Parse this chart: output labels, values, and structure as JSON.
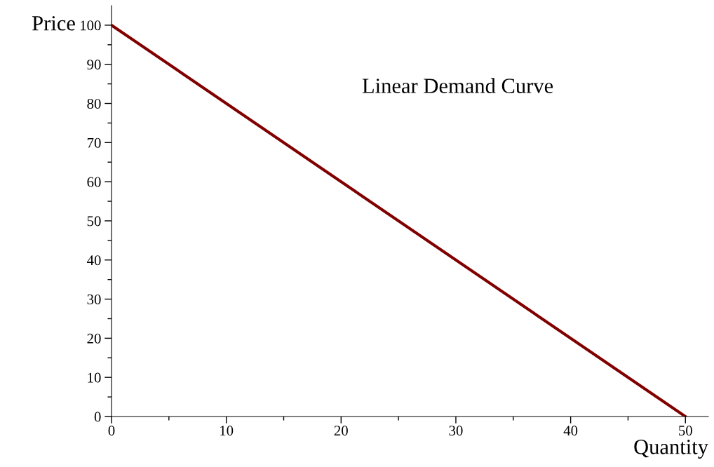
{
  "chart_data": {
    "type": "line",
    "title": "Linear Demand Curve",
    "xlabel": "Quantity",
    "ylabel": "Price",
    "x": [
      0,
      50
    ],
    "series": [
      {
        "color": "#800000",
        "values": [
          100,
          0
        ]
      }
    ],
    "xlim": [
      0,
      52
    ],
    "ylim": [
      0,
      105
    ],
    "xticks": [
      0,
      {
        "value": 5,
        "label": null
      },
      10,
      {
        "value": 15,
        "label": null
      },
      20,
      {
        "value": 25,
        "label": null
      },
      30,
      {
        "value": 35,
        "label": null
      },
      40,
      {
        "value": 45,
        "label": null
      },
      50
    ],
    "yticks": [
      0,
      {
        "value": 5,
        "label": null
      },
      10,
      {
        "value": 15,
        "label": null
      },
      20,
      {
        "value": 25,
        "label": null
      },
      30,
      {
        "value": 35,
        "label": null
      },
      40,
      {
        "value": 45,
        "label": null
      },
      50,
      {
        "value": 55,
        "label": null
      },
      60,
      {
        "value": 65,
        "label": null
      },
      70,
      {
        "value": 75,
        "label": null
      },
      80,
      {
        "value": 85,
        "label": null
      },
      90,
      {
        "value": 95,
        "label": null
      },
      100
    ],
    "grid": false,
    "legend": false,
    "marker": "none",
    "line_style": "solid"
  }
}
